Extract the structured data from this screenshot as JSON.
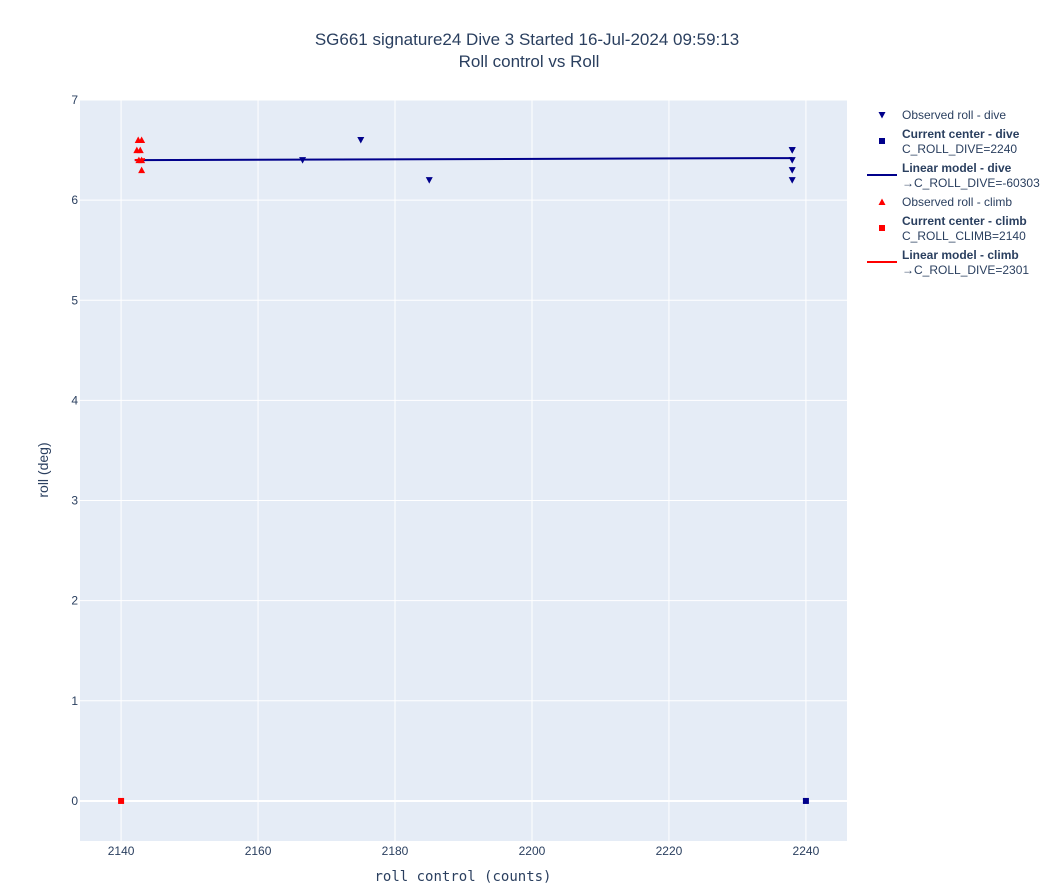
{
  "chart_data": {
    "type": "scatter",
    "title": "SG661 signature24 Dive 3 Started 16-Jul-2024 09:59:13",
    "subtitle": "Roll control vs Roll",
    "xlabel": "roll control (counts)",
    "ylabel": "roll (deg)",
    "xlim": [
      2134,
      2246
    ],
    "ylim": [
      -0.4,
      7
    ],
    "x_ticks": [
      "2140",
      "2160",
      "2180",
      "2200",
      "2220",
      "2240"
    ],
    "y_ticks": [
      "0",
      "1",
      "2",
      "3",
      "4",
      "5",
      "6",
      "7"
    ],
    "grid": true,
    "legend_position": "right",
    "series": [
      {
        "name": "Observed roll - dive",
        "marker": "triangle-down",
        "color": "#00008b",
        "x": [
          2166.5,
          2175,
          2185,
          2238,
          2238,
          2238,
          2238,
          2238
        ],
        "y": [
          6.4,
          6.6,
          6.2,
          6.5,
          6.5,
          6.4,
          6.3,
          6.2
        ]
      },
      {
        "name": "Current center - dive",
        "label": "C_ROLL_DIVE=2240",
        "marker": "square",
        "color": "#00008b",
        "x": [
          2240
        ],
        "y": [
          0
        ]
      },
      {
        "name": "Linear model - dive",
        "label": "→C_ROLL_DIVE=-60303",
        "marker": "line",
        "color": "#00008b",
        "x": [
          2142,
          2238
        ],
        "y": [
          6.4,
          6.42
        ]
      },
      {
        "name": "Observed roll - climb",
        "marker": "triangle-up",
        "color": "#ff0000",
        "x": [
          2142.5,
          2143,
          2142.3,
          2142.8,
          2143,
          2142.6,
          2143
        ],
        "y": [
          6.6,
          6.6,
          6.5,
          6.5,
          6.4,
          6.4,
          6.3
        ]
      },
      {
        "name": "Current center - climb",
        "label": "C_ROLL_CLIMB=2140",
        "marker": "square",
        "color": "#ff0000",
        "x": [
          2140
        ],
        "y": [
          0
        ]
      },
      {
        "name": "Linear model - climb",
        "label": "→C_ROLL_DIVE=2301",
        "marker": "line",
        "color": "#ff0000",
        "x": [
          2142,
          2143.5
        ],
        "y": [
          6.4,
          6.41
        ]
      }
    ]
  }
}
